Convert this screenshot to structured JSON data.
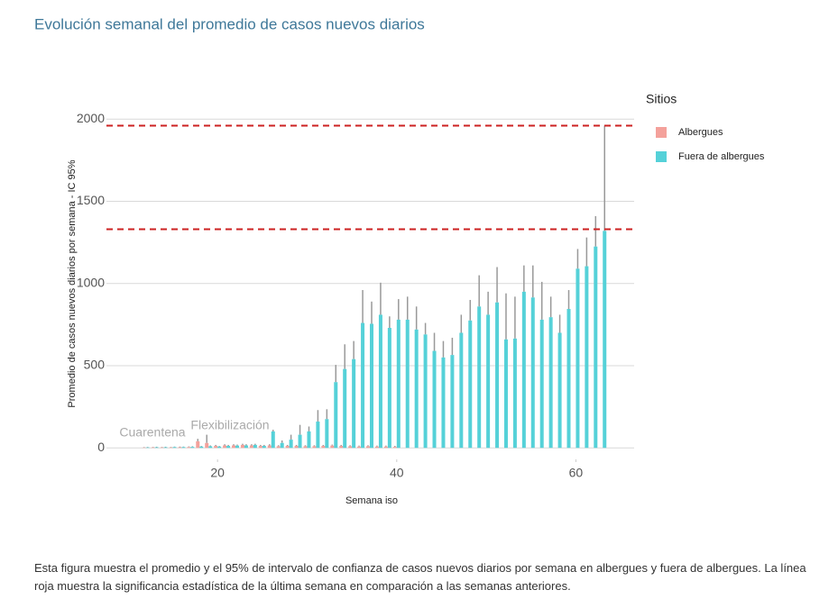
{
  "chart_data": {
    "type": "bar",
    "title": "Evolución semanal del promedio de casos nuevos diarios",
    "x_label": "Semana iso",
    "y_label": "Promedio de casos nuevos diarios por semana - IC 95%",
    "legend_title": "Sitios",
    "caption": "Esta figura muestra el promedio y el 95% de intervalo de confianza de casos nuevos diarios por semana en albergues y fuera de albergues. La línea roja muestra la significancia estadística de la última semana en comparación a las semanas anteriores.",
    "annotations": [
      "Cuarentena",
      "Flexibilización"
    ],
    "x": [
      12,
      13,
      14,
      15,
      16,
      17,
      18,
      19,
      20,
      21,
      22,
      23,
      24,
      25,
      26,
      27,
      28,
      29,
      30,
      31,
      32,
      33,
      34,
      35,
      36,
      37,
      38,
      39,
      40,
      41,
      42,
      43,
      44,
      45,
      46,
      47,
      48,
      49,
      50,
      51,
      52,
      53,
      54,
      55,
      56,
      57,
      58,
      59,
      60,
      61,
      62,
      63
    ],
    "series": [
      {
        "name": "Albergues",
        "color": "#f4a19b",
        "values": [
          2,
          3,
          3,
          3,
          4,
          5,
          40,
          30,
          12,
          15,
          15,
          18,
          15,
          12,
          15,
          10,
          12,
          12,
          10,
          10,
          12,
          14,
          12,
          10,
          8,
          10,
          8,
          8,
          6,
          null,
          null,
          null,
          null,
          null,
          null,
          null,
          null,
          null,
          null,
          null,
          null,
          null,
          null,
          null,
          null,
          null,
          null,
          null,
          null,
          null,
          null,
          null
        ],
        "ci_upper": [
          5,
          6,
          6,
          6,
          8,
          9,
          55,
          80,
          18,
          22,
          22,
          25,
          22,
          18,
          22,
          16,
          18,
          18,
          16,
          16,
          18,
          20,
          18,
          16,
          14,
          16,
          14,
          14,
          12,
          null,
          null,
          null,
          null,
          null,
          null,
          null,
          null,
          null,
          null,
          null,
          null,
          null,
          null,
          null,
          null,
          null,
          null,
          null,
          null,
          null,
          null,
          null
        ]
      },
      {
        "name": "Fuera de albergues",
        "color": "#55d1d8",
        "values": [
          3,
          4,
          4,
          5,
          5,
          6,
          8,
          10,
          8,
          12,
          14,
          15,
          18,
          12,
          100,
          30,
          50,
          80,
          100,
          160,
          175,
          400,
          480,
          540,
          760,
          755,
          810,
          730,
          780,
          780,
          720,
          690,
          590,
          550,
          565,
          700,
          775,
          860,
          810,
          885,
          660,
          665,
          950,
          915,
          780,
          795,
          700,
          845,
          1090,
          1105,
          1225,
          1320
        ],
        "ci_upper": [
          6,
          7,
          7,
          8,
          8,
          10,
          12,
          15,
          12,
          18,
          20,
          22,
          25,
          18,
          110,
          45,
          80,
          140,
          130,
          230,
          235,
          505,
          630,
          650,
          960,
          890,
          1005,
          800,
          905,
          920,
          860,
          760,
          700,
          650,
          670,
          810,
          900,
          1050,
          950,
          1100,
          940,
          920,
          1110,
          1110,
          1010,
          920,
          810,
          960,
          1210,
          1280,
          1410,
          1960
        ]
      }
    ],
    "error_color": "#999999",
    "reference_lines": [
      1960,
      1330
    ],
    "reference_color": "#cc2222",
    "xlim": [
      7.6,
      66.5
    ],
    "xticks": [
      20,
      40,
      60
    ],
    "ylim": [
      -70,
      2100
    ],
    "yticks": [
      0,
      500,
      1000,
      1500,
      2000
    ],
    "grid": true,
    "legend": "right"
  }
}
